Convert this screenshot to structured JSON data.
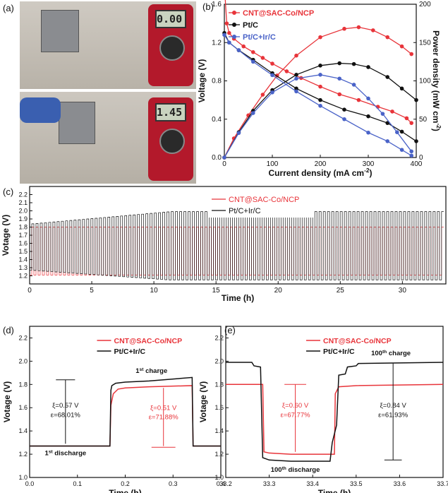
{
  "panels": {
    "a": {
      "label": "(a)",
      "meter_top": "0.00",
      "meter_bottom": "1.45"
    },
    "b": {
      "label": "(b)",
      "legend": [
        "CNT@SAC-Co/NCP",
        "Pt/C",
        "Pt/C+Ir/C"
      ]
    },
    "c": {
      "label": "(c)"
    },
    "d": {
      "label": "(d)"
    },
    "e": {
      "label": "(e)"
    }
  },
  "colors": {
    "red": "#e8343a",
    "black": "#111111",
    "blue": "#4a63c8"
  },
  "chart_data": [
    {
      "id": "b",
      "type": "line",
      "xlabel": "Current density (mA cm",
      "xlabel_sup": "-2",
      "ylabel": "Voltage (V)",
      "y2label": "Power density (mW cm",
      "y2label_sup": "-2",
      "xlim": [
        0,
        400
      ],
      "ylim": [
        0,
        1.6
      ],
      "y2lim": [
        0,
        200
      ],
      "xticks": [
        0,
        100,
        200,
        300,
        400
      ],
      "yticks": [
        0.0,
        0.4,
        0.8,
        1.2,
        1.6
      ],
      "y2ticks": [
        0,
        50,
        100,
        150,
        200
      ],
      "series": [
        {
          "name": "CNT@SAC-Co/NCP",
          "axis": "voltage",
          "color": "red",
          "x": [
            0,
            5,
            10,
            20,
            40,
            60,
            80,
            100,
            130,
            160,
            200,
            240,
            280,
            320,
            350,
            380,
            390
          ],
          "y": [
            1.8,
            1.4,
            1.3,
            1.24,
            1.16,
            1.1,
            1.04,
            0.98,
            0.9,
            0.83,
            0.74,
            0.66,
            0.6,
            0.53,
            0.48,
            0.41,
            0.36
          ]
        },
        {
          "name": "CNT@SAC-Co/NCP",
          "axis": "power",
          "color": "red",
          "x": [
            0,
            20,
            50,
            80,
            110,
            150,
            200,
            250,
            280,
            310,
            340,
            370,
            390
          ],
          "y": [
            0,
            25,
            55,
            82,
            107,
            133,
            157,
            168,
            170,
            166,
            157,
            145,
            135
          ]
        },
        {
          "name": "Pt/C",
          "axis": "voltage",
          "color": "black",
          "x": [
            0,
            10,
            30,
            60,
            100,
            150,
            200,
            250,
            300,
            340,
            370,
            400
          ],
          "y": [
            1.3,
            1.2,
            1.12,
            1.02,
            0.88,
            0.72,
            0.6,
            0.5,
            0.43,
            0.36,
            0.27,
            0.17
          ]
        },
        {
          "name": "Pt/C",
          "axis": "power",
          "color": "black",
          "x": [
            0,
            30,
            60,
            100,
            150,
            200,
            240,
            270,
            300,
            340,
            370,
            400
          ],
          "y": [
            0,
            33,
            61,
            88,
            108,
            120,
            123,
            122,
            118,
            105,
            90,
            75
          ]
        },
        {
          "name": "Pt/C+Ir/C",
          "axis": "voltage",
          "color": "blue",
          "x": [
            0,
            10,
            30,
            60,
            100,
            150,
            200,
            250,
            300,
            340,
            370,
            390
          ],
          "y": [
            1.28,
            1.2,
            1.12,
            1.0,
            0.86,
            0.69,
            0.54,
            0.4,
            0.26,
            0.17,
            0.08,
            0.02
          ]
        },
        {
          "name": "Pt/C+Ir/C",
          "axis": "power",
          "color": "blue",
          "x": [
            0,
            30,
            60,
            100,
            150,
            200,
            240,
            270,
            300,
            330,
            360,
            390
          ],
          "y": [
            0,
            32,
            58,
            85,
            103,
            108,
            103,
            95,
            77,
            57,
            33,
            8
          ]
        }
      ]
    },
    {
      "id": "c",
      "type": "line",
      "xlabel": "Time (h)",
      "ylabel": "Votage (V)",
      "xlim": [
        0,
        33.5
      ],
      "ylim": [
        1.1,
        2.3
      ],
      "xticks": [
        0,
        5,
        10,
        15,
        20,
        25,
        30
      ],
      "yticks": [
        1.2,
        1.3,
        1.4,
        1.5,
        1.6,
        1.7,
        1.8,
        1.9,
        2.0,
        2.1,
        2.2
      ],
      "cycle_period_h": 0.34,
      "series": [
        {
          "name": "CNT@SAC-Co/NCP",
          "color": "red",
          "charge_v": 1.8,
          "discharge_v": 1.21
        },
        {
          "name": "Pt/C+Ir/C",
          "color": "black",
          "charge_v_start": 1.84,
          "charge_v_end": 1.99,
          "discharge_v_start": 1.27,
          "discharge_v_end": 1.15
        }
      ]
    },
    {
      "id": "d",
      "type": "line",
      "xlabel": "Time (h)",
      "ylabel": "Votage (V)",
      "xlim": [
        0,
        0.4
      ],
      "ylim": [
        1.0,
        2.3
      ],
      "xticks": [
        0.0,
        0.1,
        0.2,
        0.3,
        0.4
      ],
      "yticks": [
        1.0,
        1.2,
        1.4,
        1.6,
        1.8,
        2.0,
        2.2
      ],
      "series": [
        {
          "name": "CNT@SAC-Co/NCP",
          "color": "red",
          "x": [
            0,
            0.168,
            0.17,
            0.175,
            0.185,
            0.2,
            0.25,
            0.34,
            0.342,
            0.4
          ],
          "y": [
            1.27,
            1.27,
            1.62,
            1.72,
            1.76,
            1.77,
            1.78,
            1.79,
            1.27,
            1.27
          ]
        },
        {
          "name": "Pt/C+Ir/C",
          "color": "black",
          "x": [
            0,
            0.168,
            0.17,
            0.172,
            0.18,
            0.2,
            0.25,
            0.34,
            0.342,
            0.4
          ],
          "y": [
            1.27,
            1.27,
            1.75,
            1.79,
            1.81,
            1.82,
            1.83,
            1.86,
            1.27,
            1.27
          ]
        }
      ],
      "annotations": [
        {
          "text": "1",
          "sup": "st",
          "after": " charge",
          "x": 0.255,
          "y": 1.9
        },
        {
          "text": "1",
          "sup": "st",
          "after": " discharge",
          "x": 0.075,
          "y": 1.19
        },
        {
          "text": "ξ=0.57 V",
          "x": 0.075,
          "y": 1.6,
          "color": "black"
        },
        {
          "text": "ε=68.01%",
          "x": 0.075,
          "y": 1.52,
          "color": "black"
        },
        {
          "text": "ξ=0.51 V",
          "x": 0.28,
          "y": 1.58,
          "color": "red"
        },
        {
          "text": "ε=71.88%",
          "x": 0.28,
          "y": 1.5,
          "color": "red"
        }
      ]
    },
    {
      "id": "e",
      "type": "line",
      "xlabel": "Time (h)",
      "ylabel": "Votage (V)",
      "xlim": [
        33.2,
        33.7
      ],
      "ylim": [
        1.0,
        2.3
      ],
      "xticks": [
        33.2,
        33.3,
        33.4,
        33.5,
        33.6,
        33.7
      ],
      "yticks": [
        1.0,
        1.2,
        1.4,
        1.6,
        1.8,
        2.0,
        2.2
      ],
      "series": [
        {
          "name": "CNT@SAC-Co/NCP",
          "color": "red",
          "x": [
            33.2,
            33.285,
            33.288,
            33.3,
            33.35,
            33.45,
            33.452,
            33.46,
            33.5,
            33.7
          ],
          "y": [
            1.8,
            1.8,
            1.22,
            1.21,
            1.2,
            1.2,
            1.72,
            1.78,
            1.79,
            1.8
          ]
        },
        {
          "name": "Pt/C+Ir/C",
          "color": "black",
          "x": [
            33.2,
            33.26,
            33.265,
            33.28,
            33.285,
            33.3,
            33.35,
            33.44,
            33.445,
            33.455,
            33.46,
            33.475,
            33.48,
            33.5,
            33.505,
            33.7
          ],
          "y": [
            1.99,
            1.99,
            1.96,
            1.95,
            1.17,
            1.15,
            1.14,
            1.14,
            1.3,
            1.45,
            1.88,
            1.89,
            1.95,
            1.96,
            1.98,
            1.99
          ]
        }
      ],
      "annotations": [
        {
          "text": "100",
          "sup": "th",
          "after": " charge",
          "x": 33.58,
          "y": 2.05
        },
        {
          "text": "100",
          "sup": "th",
          "after": " discharge",
          "x": 33.36,
          "y": 1.05
        },
        {
          "text": "ξ=0.60 V",
          "x": 33.36,
          "y": 1.6,
          "color": "red"
        },
        {
          "text": "ε=67.77%",
          "x": 33.36,
          "y": 1.52,
          "color": "red"
        },
        {
          "text": "ξ=0.84 V",
          "x": 33.585,
          "y": 1.6,
          "color": "black"
        },
        {
          "text": "ε=61.93%",
          "x": 33.585,
          "y": 1.52,
          "color": "black"
        }
      ]
    }
  ]
}
